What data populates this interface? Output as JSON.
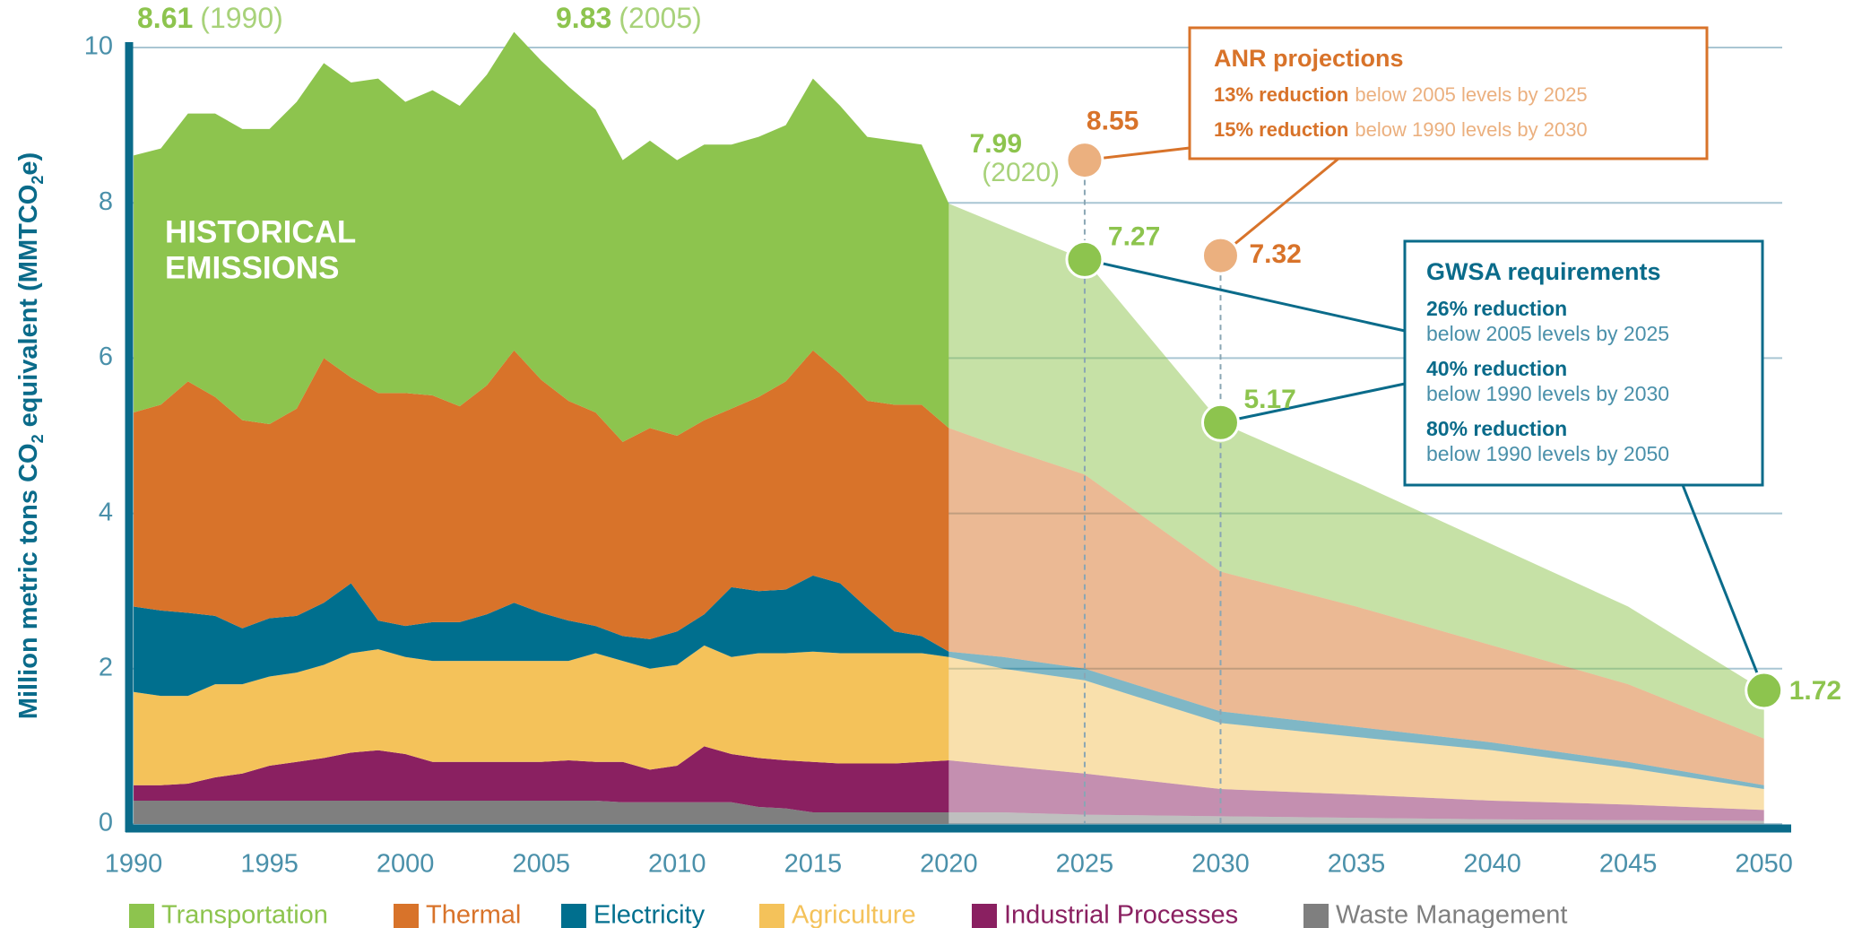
{
  "chart_data": {
    "type": "area",
    "stacked": true,
    "x": [
      1990,
      1991,
      1992,
      1993,
      1994,
      1995,
      1996,
      1997,
      1998,
      1999,
      2000,
      2001,
      2002,
      2003,
      2004,
      2005,
      2006,
      2007,
      2008,
      2009,
      2010,
      2011,
      2012,
      2013,
      2014,
      2015,
      2016,
      2017,
      2018,
      2019,
      2020
    ],
    "x_projection": [
      2020,
      2022,
      2025,
      2030,
      2035,
      2040,
      2045,
      2050
    ],
    "series": [
      {
        "name": "Waste Management",
        "color": "#7f7f7f",
        "values": [
          0.3,
          0.3,
          0.3,
          0.3,
          0.3,
          0.3,
          0.3,
          0.3,
          0.3,
          0.3,
          0.3,
          0.3,
          0.3,
          0.3,
          0.3,
          0.3,
          0.3,
          0.3,
          0.28,
          0.28,
          0.28,
          0.28,
          0.28,
          0.22,
          0.2,
          0.15,
          0.15,
          0.15,
          0.15,
          0.15,
          0.15
        ],
        "projected_values": [
          0.15,
          0.15,
          0.12,
          0.1,
          0.08,
          0.06,
          0.05,
          0.04
        ]
      },
      {
        "name": "Industrial Processes",
        "color": "#8a2061",
        "values": [
          0.2,
          0.2,
          0.22,
          0.3,
          0.35,
          0.45,
          0.5,
          0.55,
          0.62,
          0.65,
          0.6,
          0.5,
          0.5,
          0.5,
          0.5,
          0.5,
          0.52,
          0.5,
          0.52,
          0.42,
          0.47,
          0.72,
          0.62,
          0.63,
          0.62,
          0.65,
          0.63,
          0.63,
          0.63,
          0.65,
          0.67
        ],
        "projected_values": [
          0.67,
          0.6,
          0.53,
          0.35,
          0.3,
          0.24,
          0.2,
          0.14
        ]
      },
      {
        "name": "Agriculture",
        "color": "#f4c25a",
        "values": [
          1.2,
          1.15,
          1.13,
          1.2,
          1.15,
          1.15,
          1.15,
          1.2,
          1.28,
          1.3,
          1.25,
          1.3,
          1.3,
          1.3,
          1.3,
          1.3,
          1.28,
          1.4,
          1.3,
          1.3,
          1.3,
          1.3,
          1.25,
          1.35,
          1.38,
          1.42,
          1.42,
          1.42,
          1.42,
          1.4,
          1.33
        ],
        "projected_values": [
          1.33,
          1.25,
          1.2,
          0.85,
          0.74,
          0.65,
          0.47,
          0.27
        ]
      },
      {
        "name": "Electricity",
        "color": "#006f8e",
        "values": [
          1.1,
          1.1,
          1.07,
          0.88,
          0.72,
          0.75,
          0.73,
          0.8,
          0.9,
          0.37,
          0.4,
          0.5,
          0.5,
          0.6,
          0.75,
          0.62,
          0.52,
          0.35,
          0.32,
          0.38,
          0.43,
          0.4,
          0.9,
          0.8,
          0.82,
          0.98,
          0.9,
          0.58,
          0.28,
          0.22,
          0.07
        ],
        "projected_values": [
          0.07,
          0.15,
          0.15,
          0.15,
          0.13,
          0.1,
          0.08,
          0.05
        ]
      },
      {
        "name": "Thermal",
        "color": "#d8732a",
        "values": [
          2.5,
          2.65,
          2.98,
          2.82,
          2.68,
          2.5,
          2.67,
          3.15,
          2.65,
          2.93,
          3.0,
          2.92,
          2.78,
          2.95,
          3.25,
          3.0,
          2.83,
          2.75,
          2.5,
          2.72,
          2.52,
          2.5,
          2.3,
          2.5,
          2.68,
          2.9,
          2.7,
          2.67,
          2.92,
          2.98,
          2.88
        ],
        "projected_values": [
          2.88,
          2.7,
          2.5,
          1.8,
          1.55,
          1.25,
          1.0,
          0.6
        ]
      },
      {
        "name": "Transportation",
        "color": "#8dc44e",
        "values": [
          3.31,
          3.3,
          3.45,
          3.65,
          3.75,
          3.8,
          3.95,
          3.8,
          3.8,
          4.05,
          3.75,
          3.93,
          3.87,
          4.0,
          4.1,
          4.11,
          4.05,
          3.9,
          3.63,
          3.7,
          3.55,
          3.55,
          3.4,
          3.35,
          3.3,
          3.5,
          3.45,
          3.4,
          3.4,
          3.35,
          2.89
        ],
        "projected_values": [
          2.89,
          2.85,
          2.77,
          1.92,
          1.6,
          1.3,
          1.0,
          0.62
        ]
      }
    ],
    "legend_order": [
      5,
      4,
      3,
      2,
      1,
      0
    ],
    "xlim": [
      1989.8,
      2051
    ],
    "ylim": [
      0,
      10
    ],
    "xticks": [
      1990,
      1995,
      2000,
      2005,
      2010,
      2015,
      2020,
      2025,
      2030,
      2035,
      2040,
      2045,
      2050
    ],
    "yticks": [
      0,
      2,
      4,
      6,
      8,
      10
    ],
    "grid": true,
    "ylabel_parts": [
      {
        "text": "Million metric tons CO"
      },
      {
        "text": "2",
        "sub": true
      },
      {
        "text": " equivalent (MMTCO"
      },
      {
        "text": "2",
        "sub": true
      },
      {
        "text": "e)"
      }
    ],
    "historical_label": [
      "HISTORICAL",
      "EMISSIONS"
    ],
    "peak_labels": [
      {
        "value": 8.61,
        "year_label": "(1990)"
      },
      {
        "value": 9.83,
        "year_label": "(2005)"
      },
      {
        "value": 7.99,
        "year_label": "(2020)"
      }
    ],
    "anr_points": [
      {
        "x": 2025,
        "value": 8.55
      },
      {
        "x": 2030,
        "value": 7.32
      }
    ],
    "gwsa_points": [
      {
        "x": 2025,
        "value": 7.27
      },
      {
        "x": 2030,
        "value": 5.17
      },
      {
        "x": 2050,
        "value": 1.72
      }
    ],
    "anr_box": {
      "title": "ANR projections",
      "items": [
        {
          "bold": "13% reduction",
          "text": "below 2005 levels by 2025"
        },
        {
          "bold": "15% reduction",
          "text": "below 1990 levels by 2030"
        }
      ]
    },
    "gwsa_box": {
      "title": "GWSA requirements",
      "items": [
        {
          "bold": "26% reduction",
          "text": "below 2005 levels by 2025"
        },
        {
          "bold": "40% reduction",
          "text": "below 1990 levels by 2030"
        },
        {
          "bold": "80% reduction",
          "text": "below 1990 levels by 2050"
        }
      ]
    }
  }
}
